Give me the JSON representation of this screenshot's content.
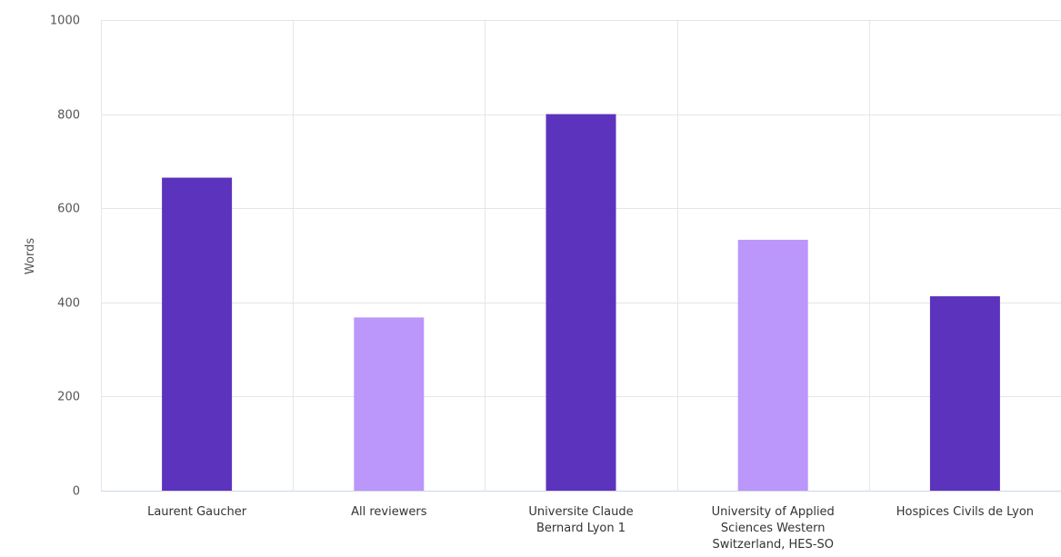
{
  "chart_data": {
    "type": "bar",
    "title": "",
    "xlabel": "",
    "ylabel": "Words",
    "ylim": [
      0,
      1000
    ],
    "yticks": [
      0,
      200,
      400,
      600,
      800,
      1000
    ],
    "grid": true,
    "categories": [
      [
        "Laurent Gaucher"
      ],
      [
        "All reviewers"
      ],
      [
        "Universite Claude",
        "Bernard Lyon 1"
      ],
      [
        "University of Applied",
        "Sciences Western",
        "Switzerland, HES-SO"
      ],
      [
        "Hospices Civils de Lyon"
      ]
    ],
    "values": [
      665,
      368,
      800,
      533,
      413
    ],
    "bar_colors": [
      "#5c33bd",
      "#bb96fb",
      "#5c33bd",
      "#bb96fb",
      "#5c33bd"
    ]
  }
}
